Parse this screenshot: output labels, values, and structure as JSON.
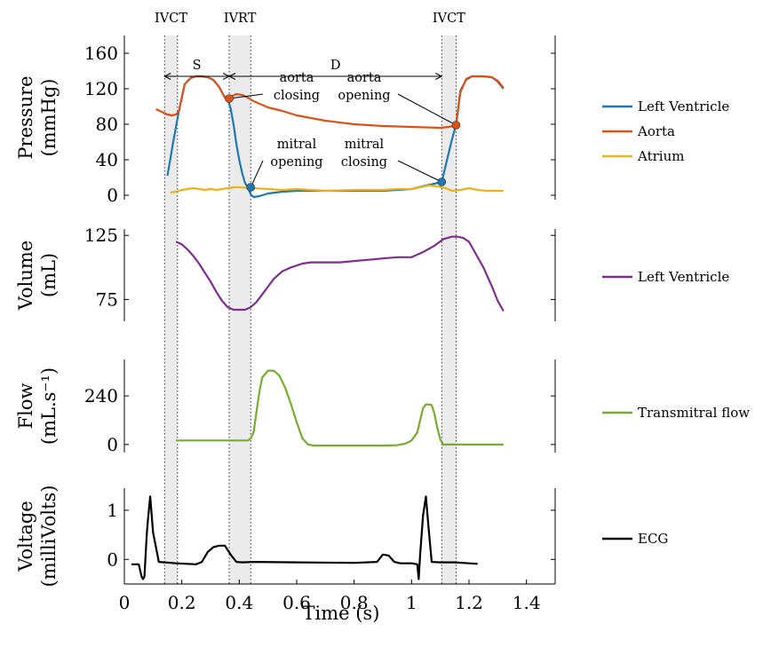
{
  "chart_data": {
    "type": "line",
    "xlabel": "Time (s)",
    "xlim": [
      0,
      1.5
    ],
    "xticks": [
      "0",
      "0.2",
      "0.4",
      "0.6",
      "0.8",
      "1",
      "1.2",
      "1.4"
    ],
    "xtick_values": [
      0,
      0.2,
      0.4,
      0.6,
      0.8,
      1.0,
      1.2,
      1.4
    ],
    "phase_bands": [
      {
        "label": "IVCT",
        "x0": 0.14,
        "x1": 0.185
      },
      {
        "label": "IVRT",
        "x0": 0.365,
        "x1": 0.44
      },
      {
        "label": "IVCT",
        "x0": 1.105,
        "x1": 1.155
      }
    ],
    "panels": [
      {
        "ylabel_line1": "Pressure",
        "ylabel_line2": "(mmHg)",
        "ylim": [
          -5,
          180
        ],
        "yticks": [
          "0",
          "40",
          "80",
          "120",
          "160"
        ],
        "ytick_values": [
          0,
          40,
          80,
          120,
          160
        ],
        "series": [
          {
            "name": "Left Ventricle",
            "color": "#1f77b4",
            "x": [
              0.15,
              0.17,
              0.19,
              0.21,
              0.23,
              0.25,
              0.27,
              0.29,
              0.31,
              0.33,
              0.35,
              0.36,
              0.37,
              0.38,
              0.39,
              0.4,
              0.41,
              0.42,
              0.43,
              0.44,
              0.45,
              0.47,
              0.5,
              0.55,
              0.6,
              0.7,
              0.8,
              0.9,
              0.95,
              1.0,
              1.05,
              1.08,
              1.105,
              1.12,
              1.14,
              1.155,
              1.17,
              1.19,
              1.21,
              1.25,
              1.28,
              1.3,
              1.32
            ],
            "y": [
              22,
              60,
              95,
              125,
              132,
              134,
              134,
              133,
              130,
              122,
              110,
              108,
              98,
              80,
              58,
              40,
              25,
              14,
              9,
              1,
              -2,
              -1,
              2,
              4,
              5,
              5,
              5,
              5,
              6,
              7,
              11,
              13,
              15,
              35,
              62,
              80,
              118,
              130,
              134,
              134,
              133,
              128,
              120
            ]
          },
          {
            "name": "Aorta",
            "color": "#d95319",
            "x": [
              0.11,
              0.13,
              0.15,
              0.165,
              0.18,
              0.19,
              0.2,
              0.21,
              0.23,
              0.25,
              0.27,
              0.29,
              0.31,
              0.33,
              0.35,
              0.36,
              0.37,
              0.39,
              0.41,
              0.43,
              0.45,
              0.5,
              0.55,
              0.6,
              0.7,
              0.8,
              0.9,
              1.0,
              1.1,
              1.13,
              1.155,
              1.17,
              1.19,
              1.21,
              1.25,
              1.28,
              1.3,
              1.32
            ],
            "y": [
              97,
              94,
              91,
              90,
              91,
              95,
              110,
              125,
              132,
              134,
              134,
              133,
              130,
              122,
              110,
              108,
              111,
              114,
              113,
              110,
              106,
              99,
              95,
              90,
              84,
              80,
              78,
              77,
              76,
              77,
              79,
              116,
              131,
              134,
              134,
              133,
              129,
              121
            ]
          },
          {
            "name": "Atrium",
            "color": "#edb120",
            "x": [
              0.16,
              0.18,
              0.2,
              0.22,
              0.24,
              0.26,
              0.28,
              0.3,
              0.32,
              0.34,
              0.36,
              0.38,
              0.4,
              0.45,
              0.5,
              0.55,
              0.6,
              0.65,
              0.7,
              0.8,
              0.9,
              0.95,
              1.0,
              1.03,
              1.06,
              1.09,
              1.12,
              1.14,
              1.17,
              1.2,
              1.23,
              1.26,
              1.29,
              1.32
            ],
            "y": [
              3,
              4,
              6,
              7,
              8,
              7,
              6,
              7,
              6,
              7,
              8,
              9,
              9,
              8,
              7,
              6,
              7,
              6,
              5,
              6,
              6,
              7,
              7,
              9,
              11,
              10,
              8,
              5,
              6,
              8,
              6,
              5,
              5,
              5
            ]
          }
        ],
        "points": [
          {
            "x": 0.365,
            "y": 109,
            "color": "#d95319"
          },
          {
            "x": 1.155,
            "y": 79,
            "color": "#d95319"
          },
          {
            "x": 0.44,
            "y": 9,
            "color": "#1f77b4"
          },
          {
            "x": 1.105,
            "y": 15,
            "color": "#1f77b4"
          }
        ],
        "annotations": [
          {
            "lines": [
              "aorta",
              "closing"
            ],
            "x": 0.6,
            "y": 118,
            "tx": 0.365,
            "ty": 109
          },
          {
            "lines": [
              "aorta",
              "opening"
            ],
            "x": 0.835,
            "y": 118,
            "tx": 1.155,
            "ty": 79
          },
          {
            "lines": [
              "mitral",
              "opening"
            ],
            "x": 0.6,
            "y": 43,
            "tx": 0.44,
            "ty": 9
          },
          {
            "lines": [
              "mitral",
              "closing"
            ],
            "x": 0.835,
            "y": 43,
            "tx": 1.105,
            "ty": 15
          }
        ],
        "spans": [
          {
            "label": "S",
            "x0": 0.14,
            "x1": 0.365,
            "y": 152
          },
          {
            "label": "D",
            "x0": 0.365,
            "x1": 1.105,
            "y": 152
          }
        ]
      },
      {
        "ylabel_line1": "Volume",
        "ylabel_line2": "(mL)",
        "ylim": [
          58,
          130
        ],
        "yticks": [
          "75",
          "125"
        ],
        "ytick_values": [
          75,
          125
        ],
        "series": [
          {
            "name": "Left Ventricle",
            "color": "#7e2f8e",
            "x": [
              0.18,
              0.2,
              0.22,
              0.24,
              0.26,
              0.28,
              0.3,
              0.32,
              0.34,
              0.36,
              0.38,
              0.4,
              0.42,
              0.44,
              0.46,
              0.48,
              0.5,
              0.52,
              0.55,
              0.58,
              0.62,
              0.65,
              0.7,
              0.75,
              0.8,
              0.85,
              0.9,
              0.95,
              1.0,
              1.04,
              1.08,
              1.11,
              1.14,
              1.16,
              1.18,
              1.2,
              1.22,
              1.25,
              1.28,
              1.3,
              1.32
            ],
            "y": [
              120,
              118,
              114,
              109,
              103,
              96,
              89,
              81,
              74,
              69,
              67,
              67,
              67,
              69,
              73,
              79,
              85,
              91,
              97,
              100,
              103,
              104,
              104,
              104,
              105,
              106,
              107,
              108,
              108,
              112,
              117,
              122,
              124,
              124,
              123,
              120,
              112,
              100,
              85,
              74,
              66
            ]
          }
        ]
      },
      {
        "ylabel_line1": "Flow",
        "ylabel_line2": "(mL.s⁻¹)",
        "ylim": [
          -40,
          420
        ],
        "yticks": [
          "0",
          "240"
        ],
        "ytick_values": [
          0,
          240
        ],
        "series": [
          {
            "name": "Transmitral flow",
            "color": "#77ac30",
            "x": [
              0.18,
              0.25,
              0.3,
              0.35,
              0.4,
              0.43,
              0.44,
              0.45,
              0.46,
              0.47,
              0.48,
              0.5,
              0.52,
              0.54,
              0.56,
              0.58,
              0.6,
              0.62,
              0.64,
              0.66,
              0.7,
              0.8,
              0.9,
              0.95,
              0.98,
              1.0,
              1.02,
              1.03,
              1.04,
              1.05,
              1.06,
              1.07,
              1.08,
              1.09,
              1.1,
              1.11,
              1.15,
              1.2,
              1.25,
              1.3,
              1.32
            ],
            "y": [
              20,
              20,
              20,
              20,
              20,
              20,
              30,
              60,
              160,
              260,
              330,
              365,
              365,
              340,
              280,
              200,
              110,
              30,
              0,
              -5,
              -5,
              -5,
              -5,
              -3,
              5,
              20,
              60,
              120,
              180,
              198,
              198,
              195,
              150,
              80,
              25,
              0,
              0,
              0,
              0,
              0,
              0
            ]
          }
        ]
      },
      {
        "ylabel_line1": "Voltage",
        "ylabel_line2": "(milliVolts)",
        "ylim": [
          -0.5,
          1.45
        ],
        "yticks": [
          "0",
          "1"
        ],
        "ytick_values": [
          0,
          1
        ],
        "series": [
          {
            "name": "ECG",
            "color": "#000000",
            "x": [
              0.025,
              0.05,
              0.06,
              0.065,
              0.07,
              0.078,
              0.082,
              0.09,
              0.1,
              0.12,
              0.18,
              0.25,
              0.27,
              0.29,
              0.31,
              0.33,
              0.35,
              0.37,
              0.39,
              0.41,
              0.45,
              0.6,
              0.8,
              0.88,
              0.9,
              0.92,
              0.94,
              0.96,
              1.0,
              1.02,
              1.025,
              1.03,
              1.04,
              1.05,
              1.06,
              1.07,
              1.1,
              1.15,
              1.2,
              1.23
            ],
            "y": [
              -0.1,
              -0.1,
              -0.35,
              -0.4,
              -0.35,
              0.5,
              0.8,
              1.28,
              0.55,
              -0.05,
              -0.08,
              -0.1,
              -0.05,
              0.15,
              0.25,
              0.28,
              0.28,
              0.1,
              -0.05,
              -0.06,
              -0.05,
              -0.06,
              -0.07,
              -0.05,
              0.1,
              0.08,
              -0.05,
              -0.08,
              -0.08,
              -0.1,
              -0.4,
              0.1,
              0.9,
              1.28,
              0.6,
              -0.05,
              -0.06,
              -0.06,
              -0.08,
              -0.09
            ]
          }
        ]
      }
    ]
  }
}
